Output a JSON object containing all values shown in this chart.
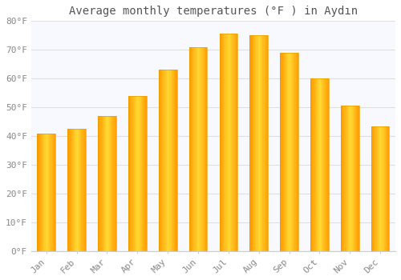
{
  "title": "Average monthly temperatures (°F ) in Aydın",
  "months": [
    "Jan",
    "Feb",
    "Mar",
    "Apr",
    "May",
    "Jun",
    "Jul",
    "Aug",
    "Sep",
    "Oct",
    "Nov",
    "Dec"
  ],
  "values": [
    41,
    42.5,
    47,
    54,
    63,
    71,
    75.5,
    75,
    69,
    60,
    50.5,
    43.5
  ],
  "bar_color_main": "#FFC020",
  "bar_color_edge": "#E8A000",
  "background_color": "#ffffff",
  "plot_bg_color": "#f8f8ff",
  "ylim": [
    0,
    80
  ],
  "yticks": [
    0,
    10,
    20,
    30,
    40,
    50,
    60,
    70,
    80
  ],
  "grid_color": "#e0e0e0",
  "title_fontsize": 10,
  "tick_fontsize": 8,
  "bar_width": 0.6
}
